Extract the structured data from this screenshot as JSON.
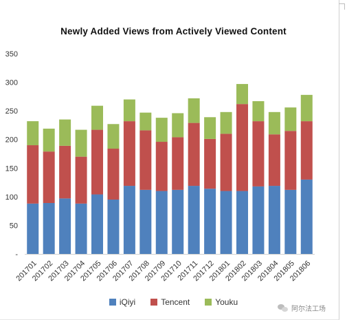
{
  "chart_data": {
    "type": "bar",
    "stacked": true,
    "title": "Newly Added Views from Actively Viewed Content",
    "xlabel": "",
    "ylabel": "",
    "ylim": [
      0,
      350
    ],
    "yticks": [
      0,
      50,
      100,
      150,
      200,
      250,
      300,
      350
    ],
    "ytick_labels": [
      "-",
      "50",
      "100",
      "150",
      "200",
      "250",
      "300",
      "350"
    ],
    "grid": false,
    "legend_position": "bottom",
    "categories": [
      "201701",
      "201702",
      "201703",
      "201704",
      "201705",
      "201706",
      "201707",
      "201708",
      "201709",
      "201710",
      "201711",
      "201712",
      "201801",
      "201802",
      "201803",
      "201804",
      "201805",
      "201806"
    ],
    "series": [
      {
        "name": "iQiyi",
        "color": "#4f81bd",
        "values": [
          88,
          89,
          97,
          88,
          104,
          95,
          119,
          112,
          110,
          112,
          119,
          114,
          110,
          110,
          118,
          119,
          112,
          130
        ]
      },
      {
        "name": "Tencent",
        "color": "#c0504d",
        "values": [
          102,
          90,
          92,
          82,
          113,
          89,
          113,
          104,
          86,
          92,
          110,
          87,
          100,
          152,
          114,
          90,
          103,
          102
        ]
      },
      {
        "name": "Youku",
        "color": "#9bbb59",
        "values": [
          42,
          40,
          46,
          47,
          42,
          43,
          38,
          31,
          42,
          42,
          43,
          38,
          38,
          35,
          35,
          39,
          41,
          46
        ]
      }
    ]
  },
  "watermark": {
    "text": "阿尔法工场",
    "icon": "wechat-icon"
  }
}
